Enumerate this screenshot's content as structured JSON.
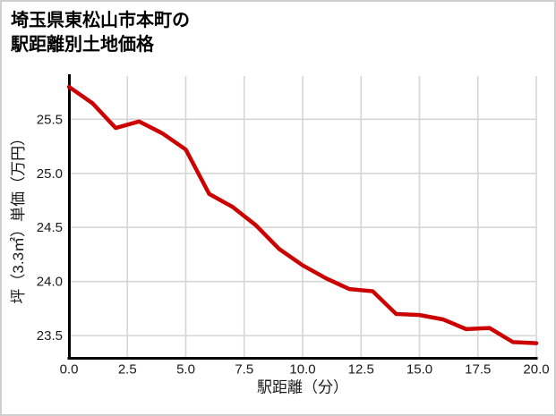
{
  "header": {
    "title_line1": "埼玉県東松山市本町の",
    "title_line2": "駅距離別土地価格"
  },
  "chart_data": {
    "type": "line",
    "title": "埼玉県東松山市本町の駅距離別土地価格",
    "xlabel": "駅距離（分）",
    "ylabel": "坪（3.3㎡）単価（万円）",
    "x": [
      0,
      1,
      2,
      3,
      4,
      5,
      6,
      7,
      8,
      9,
      10,
      11,
      12,
      13,
      14,
      15,
      16,
      17,
      18,
      19,
      20
    ],
    "y": [
      25.8,
      25.65,
      25.42,
      25.48,
      25.37,
      25.22,
      24.81,
      24.69,
      24.52,
      24.3,
      24.15,
      24.03,
      23.93,
      23.91,
      23.7,
      23.69,
      23.65,
      23.56,
      23.57,
      23.44,
      23.43
    ],
    "series_name": "坪単価（万円）",
    "x_ticks": [
      0,
      2.5,
      5,
      7.5,
      10,
      12.5,
      15,
      17.5,
      20
    ],
    "x_tick_labels": [
      "0.0",
      "2.5",
      "5.0",
      "7.5",
      "10.0",
      "12.5",
      "15.0",
      "17.5",
      "20.0"
    ],
    "y_ticks": [
      23.5,
      24.0,
      24.5,
      25.0,
      25.5
    ],
    "y_tick_labels": [
      "23.5",
      "24.0",
      "24.5",
      "25.0",
      "25.5"
    ],
    "xlim": [
      0,
      20
    ],
    "ylim": [
      23.29,
      25.9
    ],
    "grid": true,
    "legend": "none",
    "colors": {
      "line": "#cc0000",
      "grid": "#d6d6d6",
      "axis": "#000000",
      "tick_text": "#1a1a1a",
      "label_text": "#1a1a1a",
      "background": "#ffffff",
      "frame_border": "#cfcfcf"
    }
  }
}
